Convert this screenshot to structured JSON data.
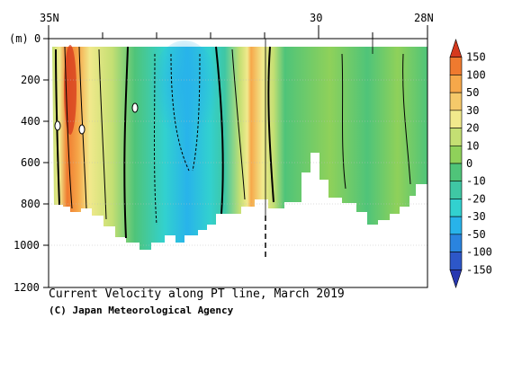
{
  "chart_data": {
    "type": "heatmap",
    "title": "Current Velocity along PT line, March 2019",
    "credit": "(C) Japan Meteorological Agency",
    "ylabel": "(m)",
    "x_ticks": [
      "35N",
      "30",
      "28N"
    ],
    "y_ticks": [
      "0",
      "200",
      "400",
      "600",
      "800",
      "1000",
      "1200"
    ],
    "ylim": [
      0,
      1200
    ],
    "y_inverted": true,
    "colorbar": {
      "levels": [
        "150",
        "100",
        "50",
        "30",
        "20",
        "10",
        "0",
        "-10",
        "-20",
        "-30",
        "-50",
        "-100",
        "-150"
      ],
      "colors": [
        "#d5391e",
        "#ef7a2f",
        "#f6a84a",
        "#f5c96a",
        "#f1e98c",
        "#c4df73",
        "#8fd15a",
        "#4fc479",
        "#3fc7a4",
        "#32d1cf",
        "#28b3ea",
        "#2a84df",
        "#2d57c8",
        "#2838b0"
      ]
    },
    "bands": [
      {
        "from_km": 0,
        "to_km": 0.9,
        "value": 20
      },
      {
        "from_km": 0.9,
        "to_km": 1.8,
        "value": 60
      },
      {
        "from_km": 1.8,
        "to_km": 2.6,
        "value": 120
      },
      {
        "from_km": 2.6,
        "to_km": 3.4,
        "value": 40
      },
      {
        "from_km": 3.4,
        "to_km": 4.1,
        "value": 15
      },
      {
        "from_km": 4.1,
        "to_km": 6.0,
        "value": 5
      },
      {
        "from_km": 6.0,
        "to_km": 12.0,
        "value": -12
      },
      {
        "from_km": 12.0,
        "to_km": 19.0,
        "value": -25
      },
      {
        "from_km": 19.0,
        "to_km": 21.5,
        "value": -12
      },
      {
        "from_km": 21.5,
        "to_km": 26.0,
        "value": 4
      },
      {
        "from_km": 26.0,
        "to_km": 32.0,
        "value": 30
      },
      {
        "from_km": 32.0,
        "to_km": 35.0,
        "value": 8
      },
      {
        "from_km": 35.0,
        "to_km": 42.0,
        "value": -8
      },
      {
        "from_km": 42.0,
        "to_km": 58.0,
        "value": -3
      },
      {
        "from_km": 58.0,
        "to_km": 100.0,
        "value": -2
      }
    ]
  }
}
